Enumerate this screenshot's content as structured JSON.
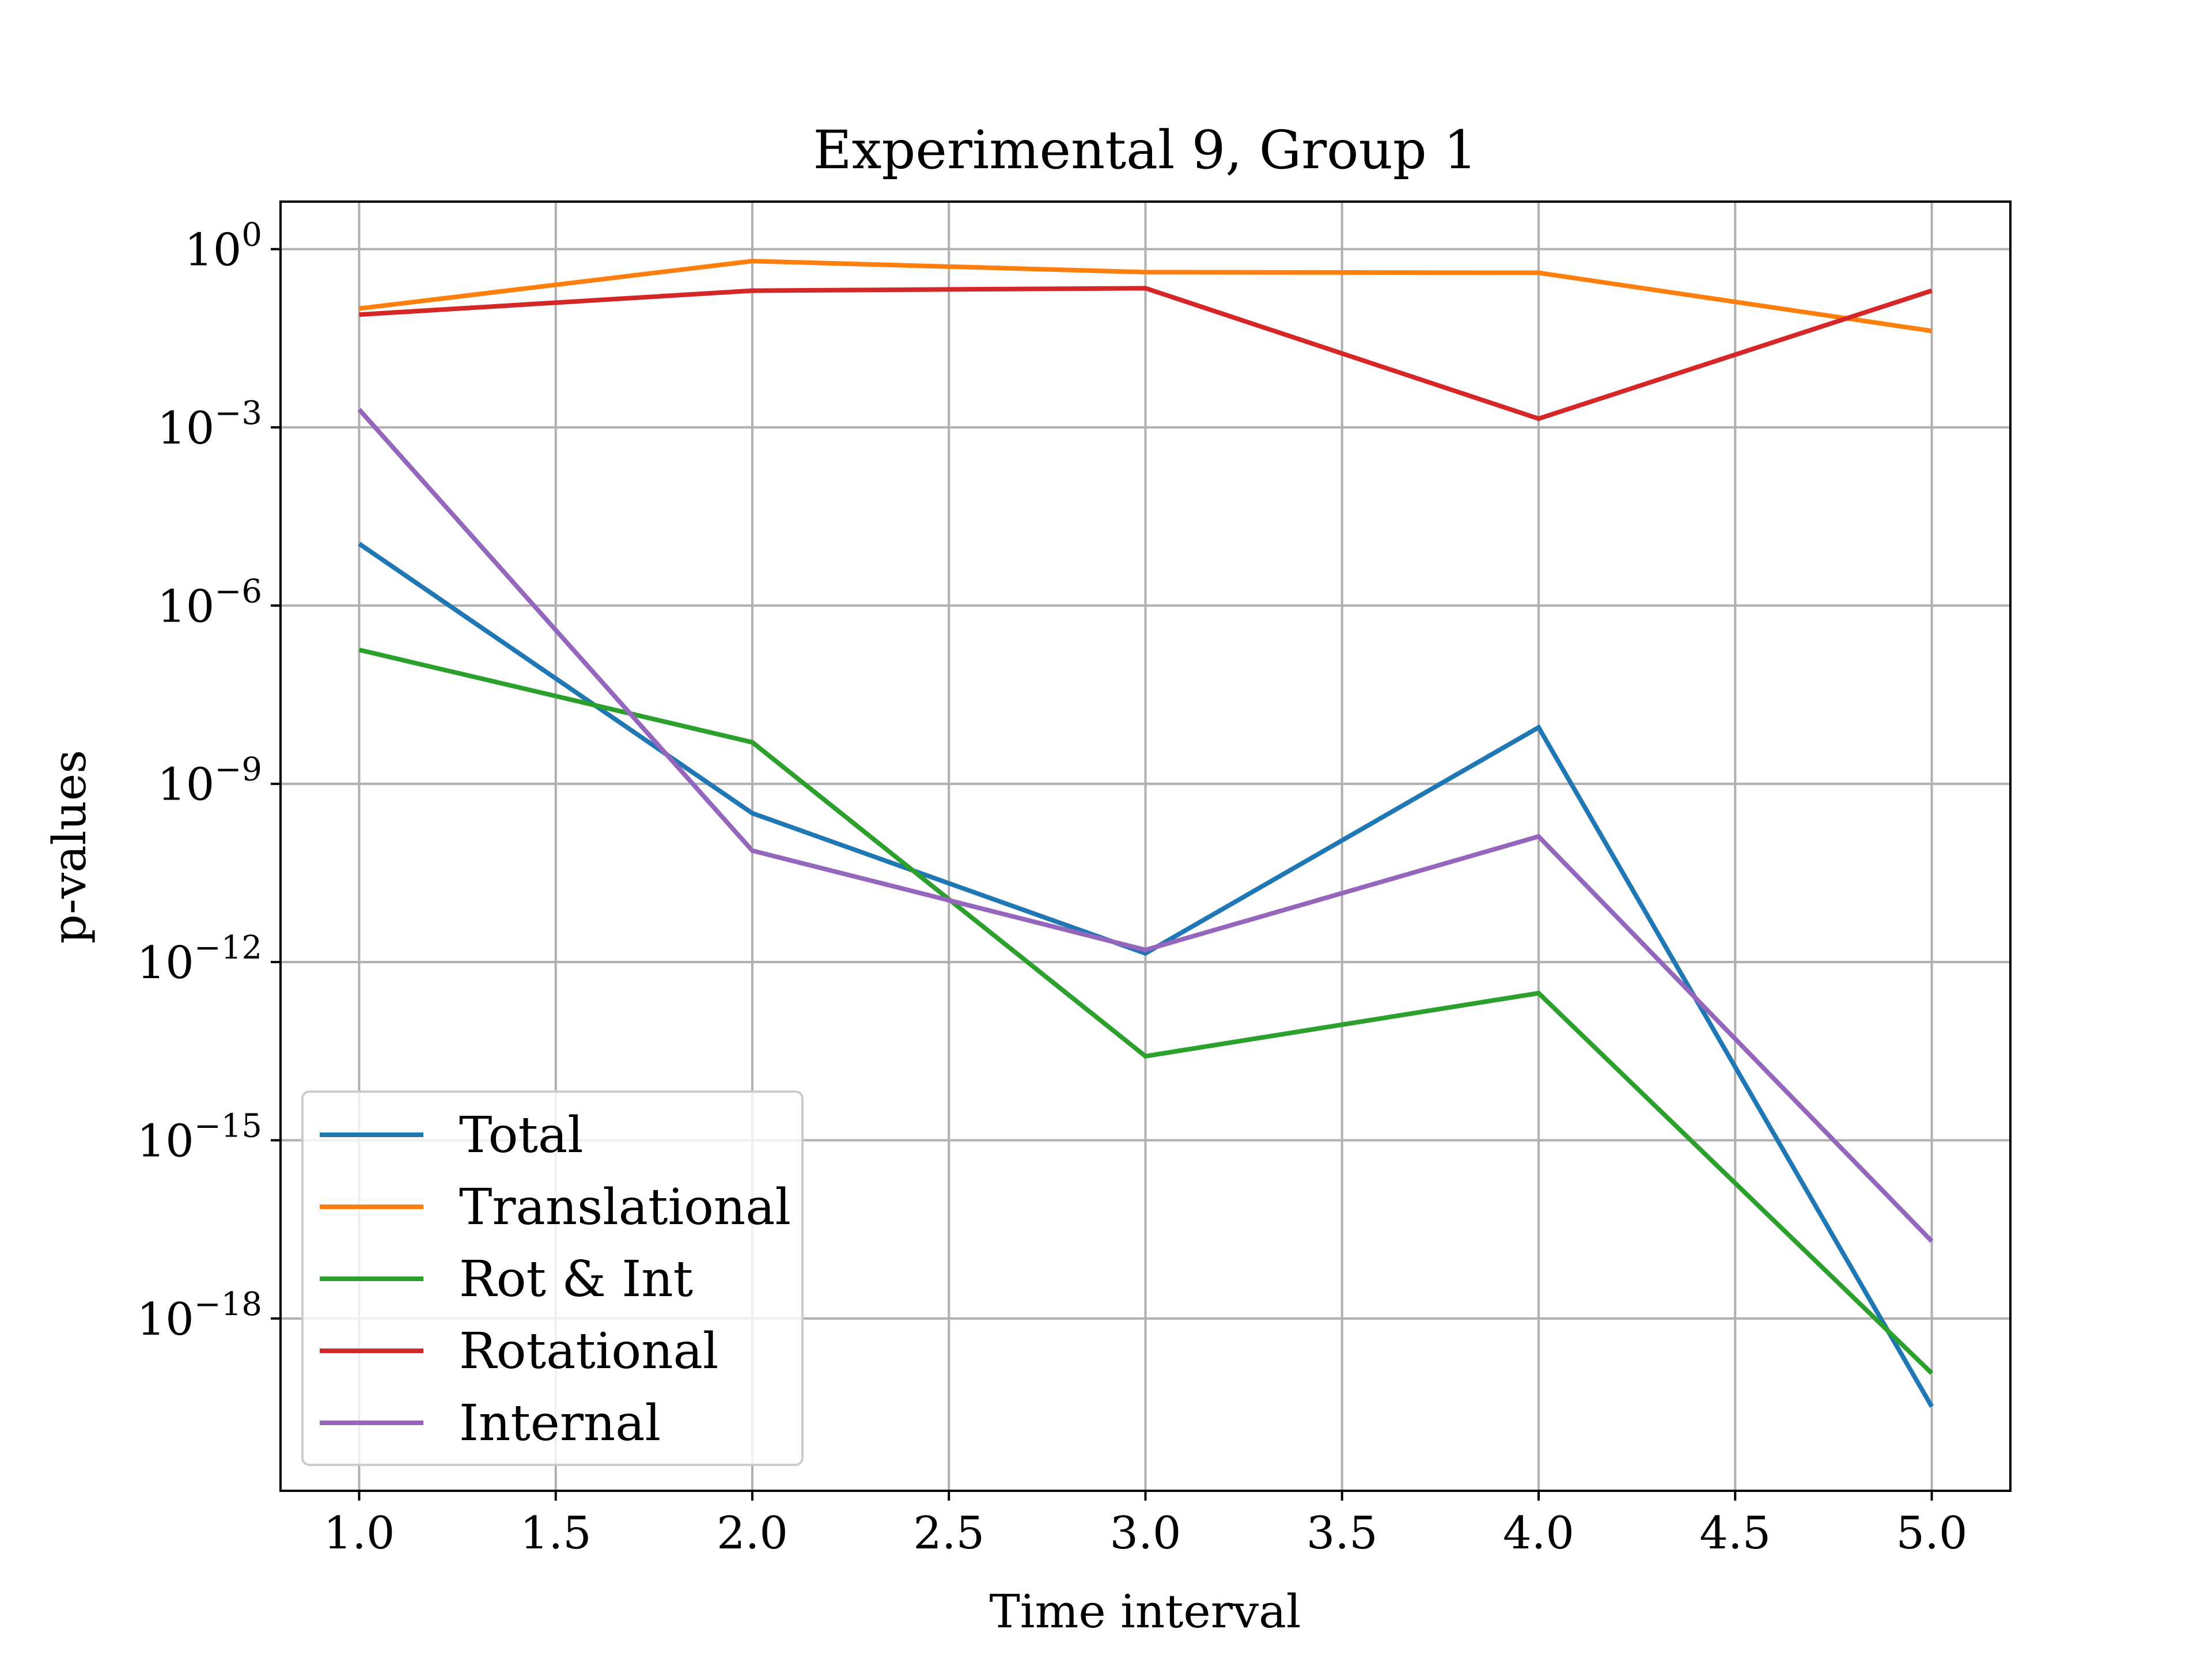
{
  "chart_data": {
    "type": "line",
    "title": "Experimental 9, Group 1",
    "xlabel": "Time interval",
    "ylabel": "p-values",
    "yscale": "log",
    "xlim": [
      0.8,
      5.2
    ],
    "ylim_exp": [
      -20.9,
      0.8
    ],
    "x_ticks": [
      1.0,
      1.5,
      2.0,
      2.5,
      3.0,
      3.5,
      4.0,
      4.5,
      5.0
    ],
    "x_tick_labels": [
      "1.0",
      "1.5",
      "2.0",
      "2.5",
      "3.0",
      "3.5",
      "4.0",
      "4.5",
      "5.0"
    ],
    "y_ticks": [
      {
        "base": "10",
        "exp": "0",
        "exp_value": 0
      },
      {
        "base": "10",
        "exp": "−3",
        "exp_value": -3
      },
      {
        "base": "10",
        "exp": "−6",
        "exp_value": -6
      },
      {
        "base": "10",
        "exp": "−9",
        "exp_value": -9
      },
      {
        "base": "10",
        "exp": "−12",
        "exp_value": -12
      },
      {
        "base": "10",
        "exp": "−15",
        "exp_value": -15
      },
      {
        "base": "10",
        "exp": "−18",
        "exp_value": -18
      }
    ],
    "grid": true,
    "legend_position": "lower-left",
    "x": [
      1,
      2,
      3,
      4,
      5
    ],
    "series": [
      {
        "name": "Total",
        "color": "#1f77b4",
        "values": [
          "1.1e-5",
          "3.2e-10",
          "1.4e-12",
          "8.9e-9",
          "3.3e-20"
        ]
      },
      {
        "name": "Translational",
        "color": "#ff7f0e",
        "values": [
          "0.10",
          "0.63",
          "0.41",
          "0.40",
          "0.042"
        ]
      },
      {
        "name": "Rot & Int",
        "color": "#2ca02c",
        "values": [
          "1.8e-7",
          "5.0e-9",
          "2.6e-14",
          "3.0e-13",
          "1.2e-19"
        ]
      },
      {
        "name": "Rotational",
        "color": "#d62728",
        "values": [
          "0.079",
          "0.20",
          "0.22",
          "0.0014",
          "0.20"
        ]
      },
      {
        "name": "Internal",
        "color": "#9467bd",
        "values": [
          "0.0020",
          "7.5e-11",
          "1.6e-12",
          "1.3e-10",
          "2.0e-17"
        ]
      }
    ]
  }
}
